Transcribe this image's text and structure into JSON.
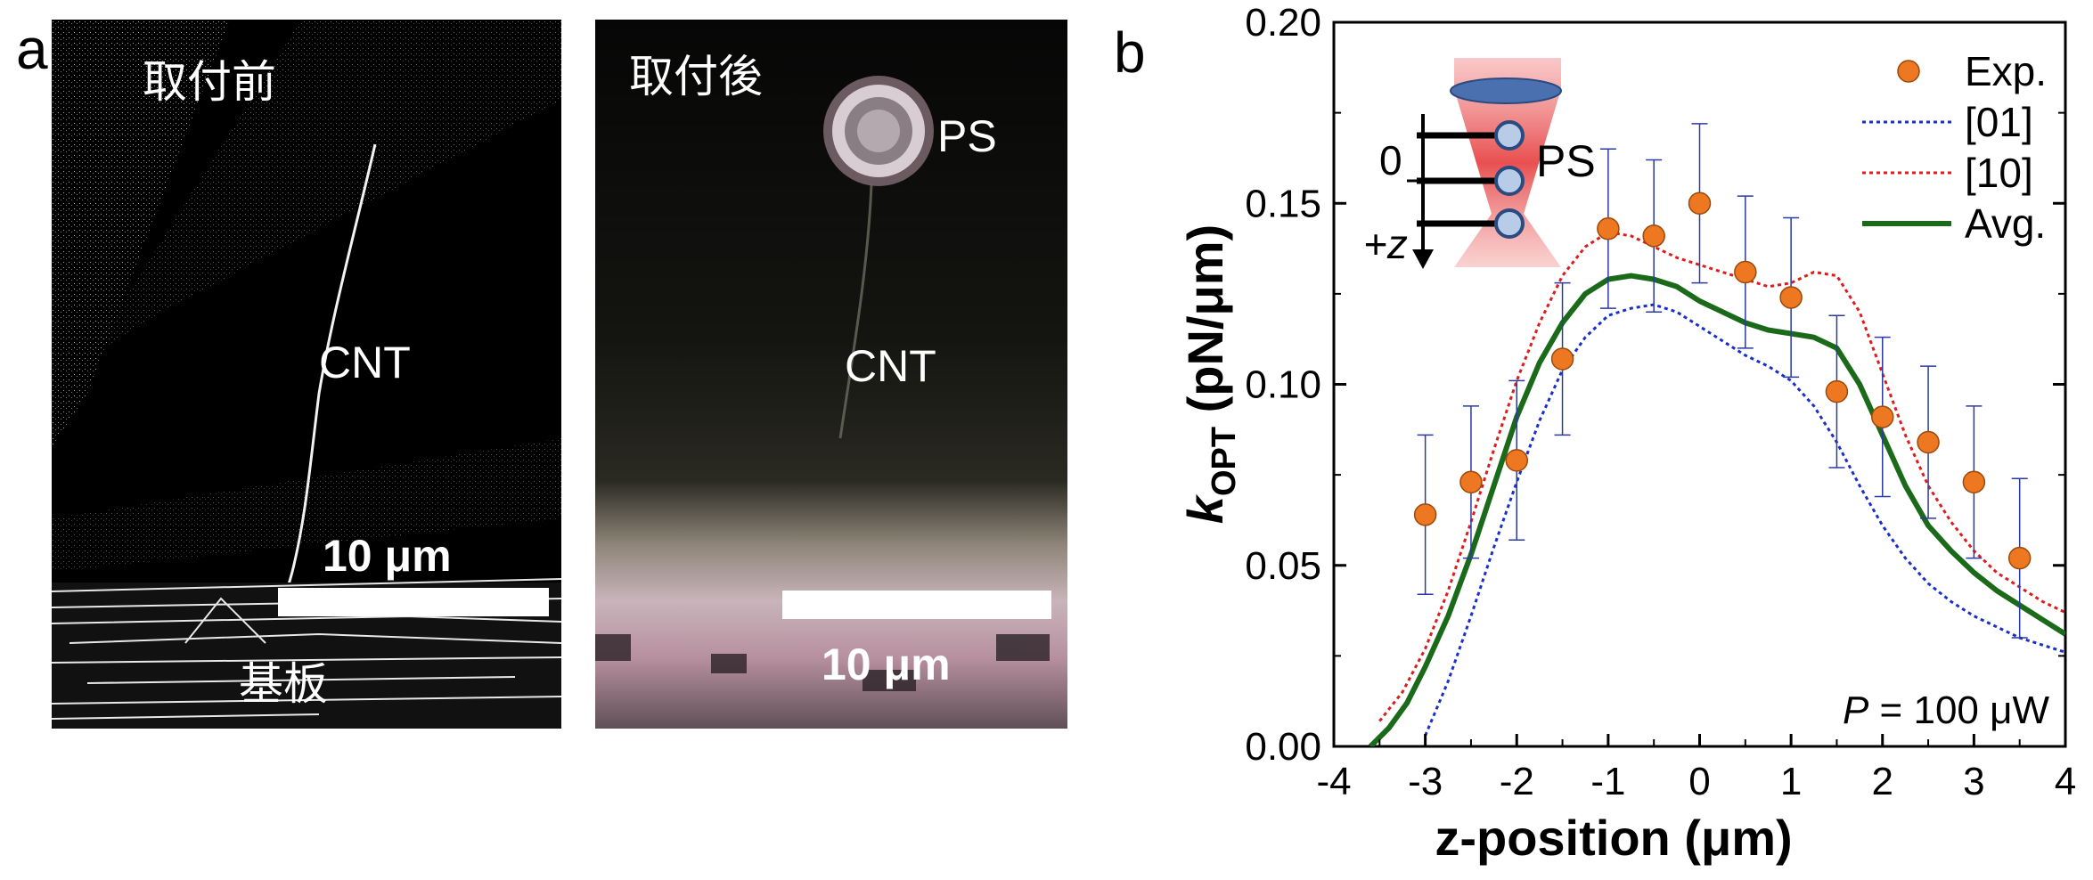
{
  "panel_a": {
    "letter": "a",
    "left_image": {
      "caption": "取付前",
      "cnt_label": "CNT",
      "scale_label": "10 μm",
      "substrate_label": "基板"
    },
    "right_image": {
      "caption": "取付後",
      "ps_label": "PS",
      "cnt_label": "CNT",
      "scale_label": "10 μm"
    }
  },
  "panel_b": {
    "letter": "b",
    "inset": {
      "zero_label": "0",
      "z_label": "+z",
      "ps_label": "PS"
    },
    "annotation_italic": "P",
    "annotation_rest": " = 100 μW"
  },
  "chart_data": {
    "type": "line",
    "xlabel": "z-position (μm)",
    "ylabel_main": "k",
    "ylabel_sub": "OPT",
    "ylabel_unit": " (pN/μm)",
    "xlim": [
      -4,
      4
    ],
    "ylim": [
      0,
      0.2
    ],
    "xticks": [
      "-4",
      "-3",
      "-2",
      "-1",
      "0",
      "1",
      "2",
      "3",
      "4"
    ],
    "yticks": [
      "0.00",
      "0.05",
      "0.10",
      "0.15",
      "0.20"
    ],
    "grid": false,
    "legend_position": "top-right",
    "colors": {
      "exp": "#ee7722",
      "s01": "#1a2fc8",
      "s10": "#dd1c1c",
      "avg": "#1a6a1a",
      "err": "#2a3aa0"
    },
    "series": [
      {
        "name": "Exp.",
        "style": "markers",
        "x": [
          -3,
          -2.5,
          -2,
          -1.5,
          -1,
          -0.5,
          0,
          0.5,
          1,
          1.5,
          2,
          2.5,
          3,
          3.5
        ],
        "y": [
          0.064,
          0.073,
          0.079,
          0.107,
          0.143,
          0.141,
          0.15,
          0.131,
          0.124,
          0.098,
          0.091,
          0.084,
          0.073,
          0.052
        ],
        "err": [
          0.022,
          0.021,
          0.022,
          0.021,
          0.022,
          0.021,
          0.022,
          0.021,
          0.022,
          0.021,
          0.022,
          0.021,
          0.021,
          0.022
        ]
      },
      {
        "name": "[01]",
        "style": "dotted",
        "x": [
          -3.0,
          -2.75,
          -2.5,
          -2.25,
          -2.0,
          -1.75,
          -1.5,
          -1.25,
          -1.0,
          -0.75,
          -0.5,
          -0.25,
          0,
          0.25,
          0.5,
          0.75,
          1.0,
          1.25,
          1.5,
          1.75,
          2.0,
          2.25,
          2.5,
          2.75,
          3.0,
          3.25,
          3.5,
          3.75,
          4.0
        ],
        "y": [
          0.003,
          0.018,
          0.036,
          0.055,
          0.073,
          0.09,
          0.104,
          0.113,
          0.119,
          0.121,
          0.122,
          0.12,
          0.116,
          0.112,
          0.108,
          0.105,
          0.101,
          0.094,
          0.084,
          0.072,
          0.061,
          0.052,
          0.045,
          0.04,
          0.036,
          0.033,
          0.03,
          0.028,
          0.026
        ]
      },
      {
        "name": "[10]",
        "style": "dotted",
        "x": [
          -3.5,
          -3.25,
          -3.0,
          -2.75,
          -2.5,
          -2.25,
          -2.0,
          -1.75,
          -1.5,
          -1.25,
          -1.0,
          -0.75,
          -0.5,
          -0.25,
          0,
          0.25,
          0.5,
          0.75,
          1.0,
          1.25,
          1.5,
          1.75,
          2.0,
          2.25,
          2.5,
          2.75,
          3.0,
          3.25,
          3.5,
          3.75,
          4.0
        ],
        "y": [
          0.007,
          0.015,
          0.027,
          0.043,
          0.062,
          0.082,
          0.101,
          0.117,
          0.13,
          0.138,
          0.142,
          0.141,
          0.138,
          0.135,
          0.133,
          0.131,
          0.129,
          0.127,
          0.128,
          0.131,
          0.13,
          0.12,
          0.103,
          0.086,
          0.072,
          0.062,
          0.054,
          0.048,
          0.044,
          0.04,
          0.037
        ]
      },
      {
        "name": "Avg.",
        "style": "solid",
        "x": [
          -3.6,
          -3.4,
          -3.2,
          -3.0,
          -2.75,
          -2.5,
          -2.25,
          -2.0,
          -1.75,
          -1.5,
          -1.25,
          -1.0,
          -0.75,
          -0.5,
          -0.25,
          0,
          0.25,
          0.5,
          0.75,
          1.0,
          1.25,
          1.5,
          1.75,
          2.0,
          2.25,
          2.5,
          2.75,
          3.0,
          3.25,
          3.5,
          3.75,
          4.0
        ],
        "y": [
          0.0,
          0.005,
          0.012,
          0.022,
          0.036,
          0.053,
          0.072,
          0.091,
          0.106,
          0.117,
          0.125,
          0.129,
          0.13,
          0.129,
          0.127,
          0.123,
          0.12,
          0.117,
          0.115,
          0.114,
          0.113,
          0.11,
          0.1,
          0.086,
          0.072,
          0.061,
          0.054,
          0.048,
          0.043,
          0.039,
          0.035,
          0.031
        ]
      }
    ]
  }
}
